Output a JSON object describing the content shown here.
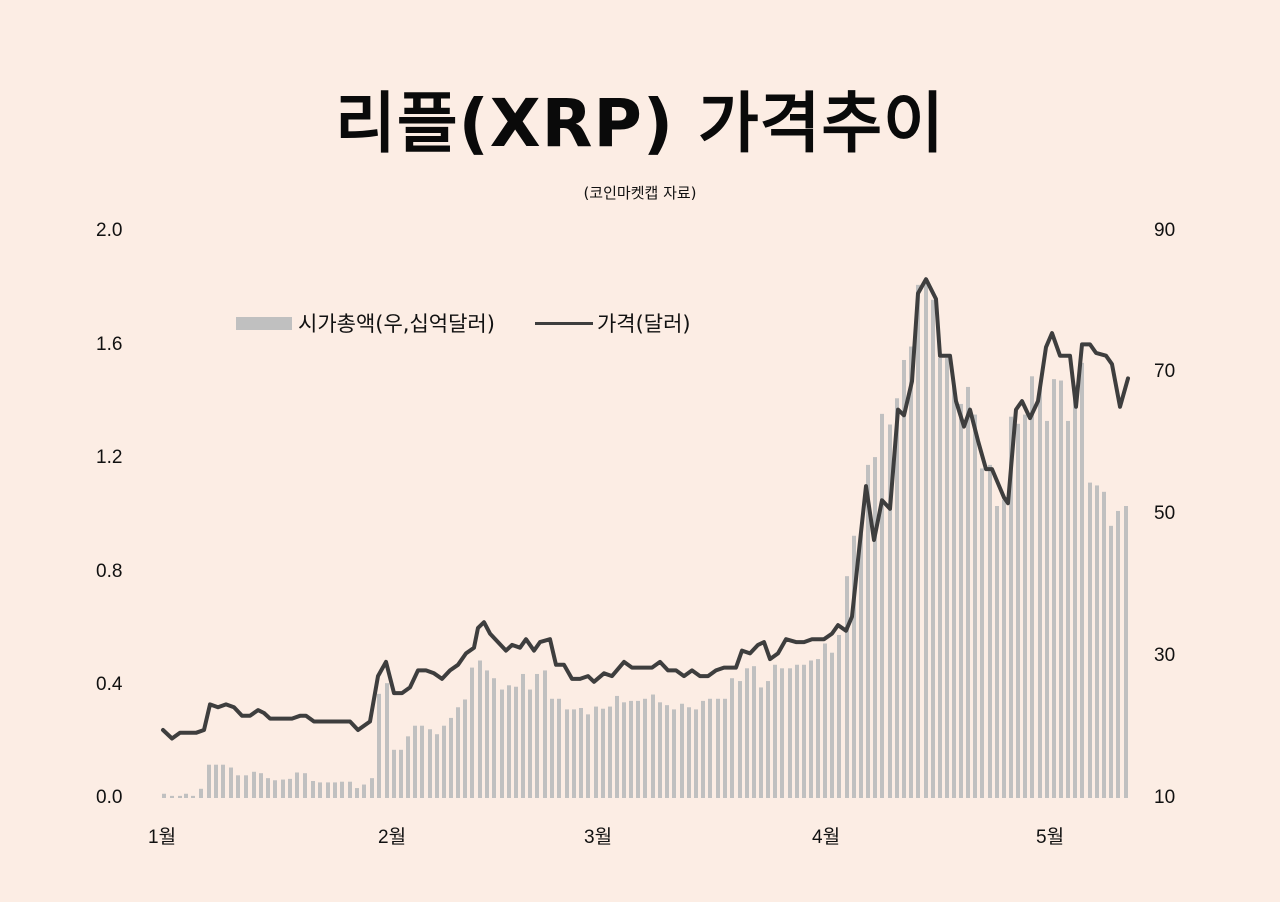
{
  "title": "리플(XRP)  가격추이",
  "subtitle": "(코인마켓캡  자료)",
  "legend": {
    "market_cap": "시가총액(우,십억달러)",
    "price": "가격(달러)"
  },
  "colors": {
    "background": "#fcede4",
    "bar": "#c0c0c0",
    "line": "#3e3e3e"
  },
  "axes": {
    "left_ticks": [
      "2.0",
      "1.6",
      "1.2",
      "0.8",
      "0.4",
      "0.0"
    ],
    "right_ticks": [
      "90",
      "70",
      "50",
      "30",
      "10"
    ],
    "x_ticks": [
      "1월",
      "2월",
      "3월",
      "4월",
      "5월"
    ]
  },
  "chart_data": {
    "type": "bar+line",
    "title": "리플(XRP)  가격추이",
    "subtitle": "(코인마켓캡  자료)",
    "xlabel": "",
    "ylabel_left": "가격(달러)",
    "ylabel_right": "시가총액(십억달러)",
    "ylim_left": [
      0.0,
      2.0
    ],
    "ylim_right": [
      10,
      90
    ],
    "legend_position": "top-left",
    "grid": false,
    "categories": [
      "1월",
      "2월",
      "3월",
      "4월",
      "5월"
    ],
    "series": [
      {
        "name": "가격(달러)",
        "type": "line",
        "axis": "left",
        "points": [
          [
            163,
            0.24
          ],
          [
            172,
            0.21
          ],
          [
            180,
            0.23
          ],
          [
            188,
            0.23
          ],
          [
            196,
            0.23
          ],
          [
            204,
            0.24
          ],
          [
            210,
            0.33
          ],
          [
            218,
            0.32
          ],
          [
            226,
            0.33
          ],
          [
            234,
            0.32
          ],
          [
            242,
            0.29
          ],
          [
            250,
            0.29
          ],
          [
            258,
            0.31
          ],
          [
            264,
            0.3
          ],
          [
            270,
            0.28
          ],
          [
            292,
            0.28
          ],
          [
            300,
            0.29
          ],
          [
            306,
            0.29
          ],
          [
            314,
            0.27
          ],
          [
            350,
            0.27
          ],
          [
            358,
            0.24
          ],
          [
            370,
            0.27
          ],
          [
            378,
            0.43
          ],
          [
            386,
            0.48
          ],
          [
            394,
            0.37
          ],
          [
            402,
            0.37
          ],
          [
            410,
            0.39
          ],
          [
            418,
            0.45
          ],
          [
            426,
            0.45
          ],
          [
            434,
            0.44
          ],
          [
            442,
            0.42
          ],
          [
            450,
            0.45
          ],
          [
            458,
            0.47
          ],
          [
            466,
            0.51
          ],
          [
            474,
            0.53
          ],
          [
            478,
            0.6
          ],
          [
            484,
            0.62
          ],
          [
            490,
            0.58
          ],
          [
            498,
            0.55
          ],
          [
            506,
            0.52
          ],
          [
            512,
            0.54
          ],
          [
            520,
            0.53
          ],
          [
            526,
            0.56
          ],
          [
            534,
            0.52
          ],
          [
            540,
            0.55
          ],
          [
            550,
            0.56
          ],
          [
            556,
            0.47
          ],
          [
            564,
            0.47
          ],
          [
            572,
            0.42
          ],
          [
            580,
            0.42
          ],
          [
            588,
            0.43
          ],
          [
            594,
            0.41
          ],
          [
            604,
            0.44
          ],
          [
            612,
            0.43
          ],
          [
            624,
            0.48
          ],
          [
            632,
            0.46
          ],
          [
            640,
            0.46
          ],
          [
            652,
            0.46
          ],
          [
            660,
            0.48
          ],
          [
            668,
            0.45
          ],
          [
            676,
            0.45
          ],
          [
            684,
            0.43
          ],
          [
            692,
            0.45
          ],
          [
            700,
            0.43
          ],
          [
            708,
            0.43
          ],
          [
            716,
            0.45
          ],
          [
            724,
            0.46
          ],
          [
            736,
            0.46
          ],
          [
            742,
            0.52
          ],
          [
            750,
            0.51
          ],
          [
            758,
            0.54
          ],
          [
            764,
            0.55
          ],
          [
            770,
            0.49
          ],
          [
            778,
            0.51
          ],
          [
            786,
            0.56
          ],
          [
            796,
            0.55
          ],
          [
            804,
            0.55
          ],
          [
            812,
            0.56
          ],
          [
            824,
            0.56
          ],
          [
            832,
            0.58
          ],
          [
            838,
            0.61
          ],
          [
            846,
            0.59
          ],
          [
            852,
            0.64
          ],
          [
            858,
            0.84
          ],
          [
            866,
            1.1
          ],
          [
            874,
            0.91
          ],
          [
            882,
            1.05
          ],
          [
            890,
            1.02
          ],
          [
            898,
            1.37
          ],
          [
            904,
            1.35
          ],
          [
            912,
            1.47
          ],
          [
            918,
            1.78
          ],
          [
            926,
            1.83
          ],
          [
            936,
            1.76
          ],
          [
            940,
            1.56
          ],
          [
            950,
            1.56
          ],
          [
            956,
            1.4
          ],
          [
            964,
            1.31
          ],
          [
            970,
            1.37
          ],
          [
            978,
            1.26
          ],
          [
            986,
            1.16
          ],
          [
            992,
            1.16
          ],
          [
            1004,
            1.06
          ],
          [
            1008,
            1.04
          ],
          [
            1016,
            1.37
          ],
          [
            1022,
            1.4
          ],
          [
            1030,
            1.34
          ],
          [
            1038,
            1.4
          ],
          [
            1046,
            1.59
          ],
          [
            1052,
            1.64
          ],
          [
            1060,
            1.56
          ],
          [
            1070,
            1.56
          ],
          [
            1076,
            1.38
          ],
          [
            1082,
            1.6
          ],
          [
            1090,
            1.6
          ],
          [
            1096,
            1.57
          ],
          [
            1106,
            1.56
          ],
          [
            1112,
            1.53
          ],
          [
            1120,
            1.38
          ],
          [
            1128,
            1.48
          ]
        ]
      },
      {
        "name": "시가총액(우,십억달러)",
        "type": "bar",
        "axis": "right",
        "points": [
          [
            164,
            10.6
          ],
          [
            172,
            10.3
          ],
          [
            180,
            10.3
          ],
          [
            186,
            10.6
          ],
          [
            193,
            10.3
          ],
          [
            201,
            11.3
          ],
          [
            209,
            14.7
          ],
          [
            216,
            14.7
          ],
          [
            223,
            14.7
          ],
          [
            231,
            14.3
          ],
          [
            238,
            13.2
          ],
          [
            246,
            13.2
          ],
          [
            254,
            13.7
          ],
          [
            261,
            13.5
          ],
          [
            268,
            12.8
          ],
          [
            275,
            12.5
          ],
          [
            283,
            12.6
          ],
          [
            290,
            12.7
          ],
          [
            297,
            13.6
          ],
          [
            305,
            13.5
          ],
          [
            313,
            12.4
          ],
          [
            320,
            12.2
          ],
          [
            328,
            12.2
          ],
          [
            335,
            12.2
          ],
          [
            342,
            12.3
          ],
          [
            350,
            12.3
          ],
          [
            357,
            11.4
          ],
          [
            364,
            11.9
          ],
          [
            372,
            12.8
          ],
          [
            379,
            24.7
          ],
          [
            387,
            26.2
          ],
          [
            394,
            16.8
          ],
          [
            401,
            16.8
          ],
          [
            408,
            18.7
          ],
          [
            415,
            20.2
          ],
          [
            422,
            20.2
          ],
          [
            430,
            19.7
          ],
          [
            437,
            19.0
          ],
          [
            444,
            20.2
          ],
          [
            451,
            21.3
          ],
          [
            458,
            22.8
          ],
          [
            465,
            23.9
          ],
          [
            472,
            28.4
          ],
          [
            480,
            29.4
          ],
          [
            487,
            28.0
          ],
          [
            494,
            26.9
          ],
          [
            502,
            25.3
          ],
          [
            509,
            25.9
          ],
          [
            516,
            25.7
          ],
          [
            523,
            27.5
          ],
          [
            530,
            25.3
          ],
          [
            537,
            27.5
          ],
          [
            545,
            28.0
          ],
          [
            552,
            24.0
          ],
          [
            559,
            24.0
          ],
          [
            567,
            22.5
          ],
          [
            574,
            22.5
          ],
          [
            581,
            22.7
          ],
          [
            588,
            21.8
          ],
          [
            596,
            22.9
          ],
          [
            603,
            22.6
          ],
          [
            610,
            22.9
          ],
          [
            617,
            24.4
          ],
          [
            624,
            23.5
          ],
          [
            631,
            23.7
          ],
          [
            638,
            23.7
          ],
          [
            645,
            24.0
          ],
          [
            653,
            24.6
          ],
          [
            660,
            23.5
          ],
          [
            667,
            23.1
          ],
          [
            674,
            22.5
          ],
          [
            682,
            23.3
          ],
          [
            689,
            22.8
          ],
          [
            696,
            22.5
          ],
          [
            703,
            23.7
          ],
          [
            710,
            24.0
          ],
          [
            718,
            24.0
          ],
          [
            725,
            24.0
          ],
          [
            732,
            26.9
          ],
          [
            740,
            26.5
          ],
          [
            747,
            28.3
          ],
          [
            754,
            28.6
          ],
          [
            761,
            25.6
          ],
          [
            768,
            26.5
          ],
          [
            775,
            28.8
          ],
          [
            782,
            28.3
          ],
          [
            790,
            28.3
          ],
          [
            797,
            28.8
          ],
          [
            804,
            28.8
          ],
          [
            811,
            29.4
          ],
          [
            818,
            29.6
          ],
          [
            825,
            31.8
          ],
          [
            832,
            30.5
          ],
          [
            839,
            33.0
          ],
          [
            847,
            41.3
          ],
          [
            854,
            47.0
          ],
          [
            861,
            47.3
          ],
          [
            868,
            57.0
          ],
          [
            875,
            58.1
          ],
          [
            882,
            64.2
          ],
          [
            890,
            62.7
          ],
          [
            897,
            66.4
          ],
          [
            904,
            71.8
          ],
          [
            911,
            73.7
          ],
          [
            918,
            82.4
          ],
          [
            926,
            82.6
          ],
          [
            933,
            80.3
          ],
          [
            940,
            72.1
          ],
          [
            947,
            72.1
          ],
          [
            954,
            68.2
          ],
          [
            961,
            65.6
          ],
          [
            968,
            68.0
          ],
          [
            975,
            64.1
          ],
          [
            982,
            56.5
          ],
          [
            990,
            57.0
          ],
          [
            997,
            51.2
          ],
          [
            1004,
            52.1
          ],
          [
            1011,
            63.8
          ],
          [
            1018,
            62.8
          ],
          [
            1025,
            64.1
          ],
          [
            1032,
            69.5
          ],
          [
            1040,
            67.9
          ],
          [
            1047,
            63.2
          ],
          [
            1054,
            69.1
          ],
          [
            1061,
            68.9
          ],
          [
            1068,
            63.2
          ],
          [
            1075,
            68.2
          ],
          [
            1082,
            71.4
          ],
          [
            1090,
            54.5
          ],
          [
            1097,
            54.1
          ],
          [
            1104,
            53.2
          ],
          [
            1111,
            48.4
          ],
          [
            1118,
            50.5
          ],
          [
            1126,
            51.2
          ]
        ]
      }
    ],
    "annotations": []
  }
}
